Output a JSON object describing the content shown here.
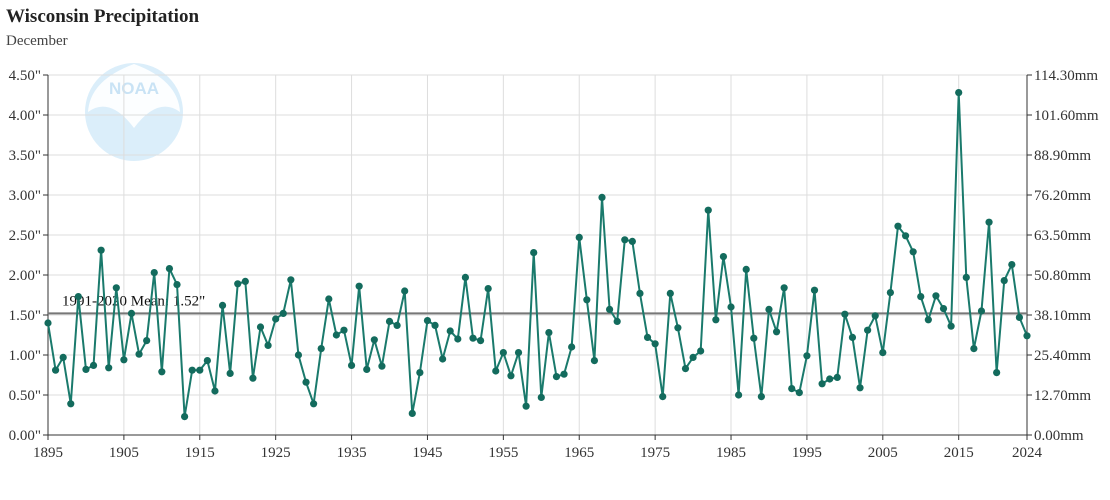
{
  "chart_data": {
    "type": "line",
    "title": "Wisconsin Precipitation",
    "subtitle": "December",
    "xlabel": "",
    "ylabel": "",
    "x_ticks": [
      1895,
      1905,
      1915,
      1925,
      1935,
      1945,
      1955,
      1965,
      1975,
      1985,
      1995,
      2005,
      2015,
      2024
    ],
    "y_ticks_left": [
      "0.00\"",
      "0.50\"",
      "1.00\"",
      "1.50\"",
      "2.00\"",
      "2.50\"",
      "3.00\"",
      "3.50\"",
      "4.00\"",
      "4.50\""
    ],
    "y_ticks_right": [
      "0.00mm",
      "12.70mm",
      "25.40mm",
      "38.10mm",
      "50.80mm",
      "63.50mm",
      "76.20mm",
      "88.90mm",
      "101.60mm",
      "114.30mm"
    ],
    "xlim": [
      1895,
      2024
    ],
    "ylim": [
      0,
      4.5
    ],
    "grid": true,
    "mean_line": {
      "label": "1991-2020 Mean: 1.52\"",
      "value": 1.52,
      "color": "#777777"
    },
    "colors": {
      "series": "#1a7a6c",
      "marker": "#136b5d",
      "grid": "#dddddd",
      "axis": "#333333"
    },
    "logo": {
      "text": "NOAA",
      "color": "#c9e3f5"
    },
    "series": [
      {
        "x": [
          1895,
          1896,
          1897,
          1898,
          1899,
          1900,
          1901,
          1902,
          1903,
          1904,
          1905,
          1906,
          1907,
          1908,
          1909,
          1910,
          1911,
          1912,
          1913,
          1914,
          1915,
          1916,
          1917,
          1918,
          1919,
          1920,
          1921,
          1922,
          1923,
          1924,
          1925,
          1926,
          1927,
          1928,
          1929,
          1930,
          1931,
          1932,
          1933,
          1934,
          1935,
          1936,
          1937,
          1938,
          1939,
          1940,
          1941,
          1942,
          1943,
          1944,
          1945,
          1946,
          1947,
          1948,
          1949,
          1950,
          1951,
          1952,
          1953,
          1954,
          1955,
          1956,
          1957,
          1958,
          1959,
          1960,
          1961,
          1962,
          1963,
          1964,
          1965,
          1966,
          1967,
          1968,
          1969,
          1970,
          1971,
          1972,
          1973,
          1974,
          1975,
          1976,
          1977,
          1978,
          1979,
          1980,
          1981,
          1982,
          1983,
          1984,
          1985,
          1986,
          1987,
          1988,
          1989,
          1990,
          1991,
          1992,
          1993,
          1994,
          1995,
          1996,
          1997,
          1998,
          1999,
          2000,
          2001,
          2002,
          2003,
          2004,
          2005,
          2006,
          2007,
          2008,
          2009,
          2010,
          2011,
          2012,
          2013,
          2014,
          2015,
          2016,
          2017,
          2018,
          2019,
          2020,
          2021,
          2022,
          2023,
          2024
        ],
        "values": [
          1.4,
          0.81,
          0.97,
          0.39,
          1.73,
          0.82,
          0.87,
          2.31,
          0.84,
          1.84,
          0.94,
          1.52,
          1.01,
          1.18,
          2.03,
          0.79,
          2.08,
          1.88,
          0.23,
          0.81,
          0.81,
          0.93,
          0.55,
          1.62,
          0.77,
          1.89,
          1.92,
          0.71,
          1.35,
          1.12,
          1.45,
          1.52,
          1.94,
          1.0,
          0.66,
          0.39,
          1.08,
          1.7,
          1.25,
          1.31,
          0.87,
          1.86,
          0.82,
          1.19,
          0.86,
          1.42,
          1.37,
          1.8,
          0.27,
          0.78,
          1.43,
          1.37,
          0.95,
          1.3,
          1.2,
          1.97,
          1.21,
          1.18,
          1.83,
          0.8,
          1.03,
          0.74,
          1.03,
          0.36,
          2.28,
          0.47,
          1.28,
          0.73,
          0.76,
          1.1,
          2.47,
          1.69,
          0.93,
          2.97,
          1.57,
          1.42,
          2.44,
          2.42,
          1.77,
          1.22,
          1.14,
          0.48,
          1.77,
          1.34,
          0.83,
          0.97,
          1.05,
          2.81,
          1.44,
          2.23,
          1.6,
          0.5,
          2.07,
          1.21,
          0.48,
          1.57,
          1.29,
          1.84,
          0.58,
          0.53,
          0.99,
          1.81,
          0.64,
          0.7,
          0.72,
          1.51,
          1.22,
          0.59,
          1.31,
          1.49,
          1.03,
          1.78,
          2.61,
          2.49,
          2.29,
          1.73,
          1.44,
          1.74,
          1.58,
          1.36,
          4.28,
          1.97,
          1.08,
          1.55,
          2.66,
          0.78,
          1.93,
          2.13,
          1.47,
          1.24
        ]
      }
    ]
  }
}
